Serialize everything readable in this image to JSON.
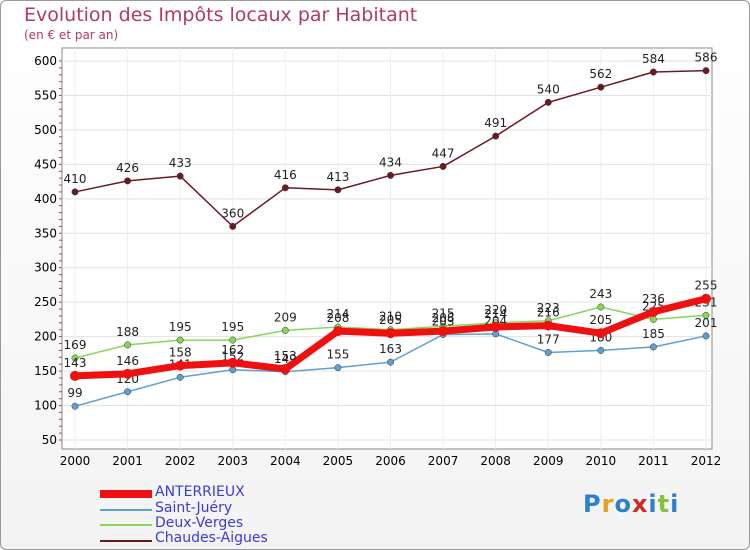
{
  "chart_data": {
    "type": "line",
    "title": "Evolution des Impôts locaux par Habitant",
    "subtitle": "(en € et par an)",
    "x": [
      "2000",
      "2001",
      "2002",
      "2003",
      "2004",
      "2005",
      "2006",
      "2007",
      "2008",
      "2009",
      "2010",
      "2011",
      "2012"
    ],
    "ylim": [
      50,
      600
    ],
    "yticks": [
      50,
      100,
      150,
      200,
      250,
      300,
      350,
      400,
      450,
      500,
      550,
      600
    ],
    "series": [
      {
        "name": "Chaudes-Aigues",
        "color": "#6b1a24",
        "values": [
          410,
          426,
          433,
          360,
          416,
          413,
          434,
          447,
          491,
          540,
          562,
          584,
          586
        ]
      },
      {
        "name": "Deux-Verges",
        "color": "#88d65a",
        "values": [
          169,
          188,
          195,
          195,
          209,
          214,
          210,
          215,
          220,
          223,
          243,
          225,
          231
        ]
      },
      {
        "name": "Saint-Juéry",
        "color": "#5fa0d0",
        "values": [
          99,
          120,
          141,
          152,
          149,
          155,
          163,
          203,
          204,
          177,
          180,
          185,
          201
        ]
      },
      {
        "name": "ANTERRIEUX",
        "color": "#ee1111",
        "values": [
          143,
          146,
          158,
          162,
          153,
          208,
          205,
          208,
          214,
          216,
          205,
          236,
          255
        ]
      }
    ],
    "labels": [
      [
        "410",
        "426",
        "433",
        "360",
        "416",
        "413",
        "434",
        "447",
        "491",
        "540",
        "562",
        "584",
        "586"
      ],
      [
        "169",
        "188",
        "195",
        "195",
        "209",
        "214",
        "210",
        "215",
        "220",
        "223",
        "243",
        "225",
        "231"
      ],
      [
        "99",
        "120",
        "141",
        "152",
        "149",
        "155",
        "163",
        "203",
        "204",
        "177",
        "180",
        "185",
        "201"
      ],
      [
        "143",
        "146",
        "158",
        "162",
        "153",
        "208",
        "205",
        "208",
        "214",
        "216",
        "205",
        "236",
        "255"
      ]
    ]
  },
  "legend": [
    "ANTERRIEUX",
    "Saint-Juéry",
    "Deux-Verges",
    "Chaudes-Aigues"
  ],
  "logo": {
    "p": "P",
    "r": "r",
    "o": "o",
    "x": "x",
    "i": "i",
    "t": "t",
    "i2": "i"
  }
}
